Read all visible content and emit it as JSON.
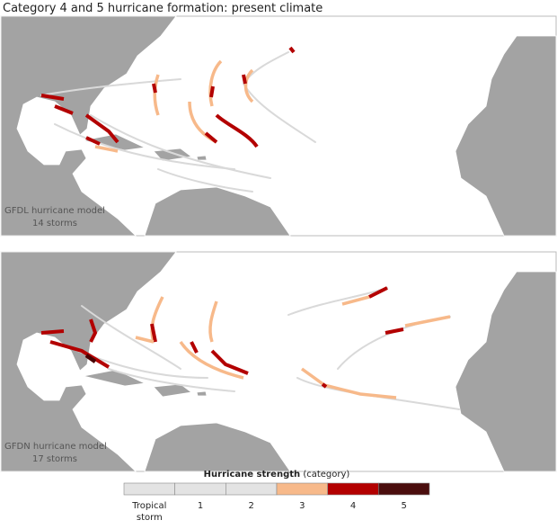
{
  "title": "Category 4 and 5 hurricane formation: present climate",
  "panels": [
    {
      "model": "GFDL hurricane model",
      "storms": "14 storms"
    },
    {
      "model": "GFDN hurricane model",
      "storms": "17 storms"
    }
  ],
  "legend": {
    "title": "Hurricane strength",
    "unit": "(category)",
    "items": [
      {
        "label": "Tropical storm",
        "color": "#e3e3e3"
      },
      {
        "label": "1",
        "color": "#e3e3e3"
      },
      {
        "label": "2",
        "color": "#e3e3e3"
      },
      {
        "label": "3",
        "color": "#f7b98a"
      },
      {
        "label": "4",
        "color": "#b30000"
      },
      {
        "label": "5",
        "color": "#4a0d0d"
      }
    ]
  }
}
